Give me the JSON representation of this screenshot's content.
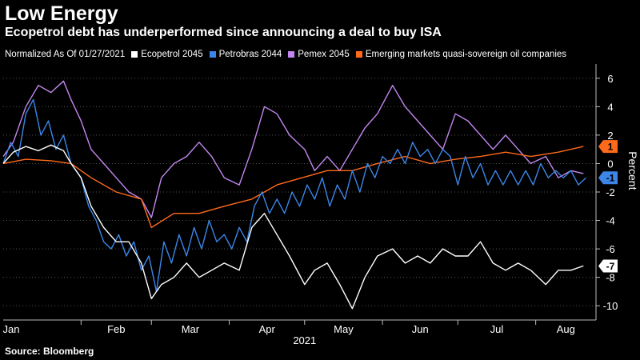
{
  "header": {
    "title": "Low Energy",
    "subtitle": "Ecopetrol debt has underperformed since announcing a deal to buy ISA"
  },
  "legend": {
    "note": "Normalized As Of 01/27/2021",
    "items": [
      {
        "label": "Ecopetrol 2045",
        "color": "#ffffff"
      },
      {
        "label": "Petrobras 2044",
        "color": "#3b86e8"
      },
      {
        "label": "Pemex 2045",
        "color": "#c487f0"
      },
      {
        "label": "Emerging markets quasi-sovereign oil companies",
        "color": "#ff6a1a"
      }
    ]
  },
  "footer": {
    "source": "Source: Bloomberg"
  },
  "chart_data": {
    "type": "line",
    "xlabel": "2021",
    "ylabel": "Percent",
    "y_axis_side": "right",
    "ylim": [
      -11,
      7
    ],
    "y_ticks": [
      6,
      4,
      2,
      0,
      -2,
      -4,
      -6,
      -8,
      -10
    ],
    "x_range": [
      "2021-01-01",
      "2021-08-25"
    ],
    "x_ticks": [
      {
        "label": "Jan",
        "date": "2021-01-04"
      },
      {
        "label": "Feb",
        "date": "2021-02-01"
      },
      {
        "label": "Mar",
        "date": "2021-03-01"
      },
      {
        "label": "Apr",
        "date": "2021-04-01"
      },
      {
        "label": "May",
        "date": "2021-05-01"
      },
      {
        "label": "Jun",
        "date": "2021-06-01"
      },
      {
        "label": "Jul",
        "date": "2021-07-01"
      },
      {
        "label": "Aug",
        "date": "2021-08-01"
      }
    ],
    "grid": "horizontal dotted",
    "end_labels": [
      {
        "series": "Emerging markets quasi-sovereign oil companies",
        "text": "1",
        "value": 1.2,
        "bg": "#ff6a1a",
        "fg": "#000000"
      },
      {
        "series": "Petrobras 2044",
        "text": "-1",
        "value": -1.0,
        "bg": "#3b86e8",
        "fg": "#000000"
      },
      {
        "series": "Ecopetrol 2045",
        "text": "-7",
        "value": -7.2,
        "bg": "#ffffff",
        "fg": "#000000"
      }
    ],
    "series": [
      {
        "name": "Ecopetrol 2045",
        "color": "#ffffff",
        "points": [
          [
            "2021-01-01",
            0.0
          ],
          [
            "2021-01-05",
            0.8
          ],
          [
            "2021-01-10",
            1.2
          ],
          [
            "2021-01-15",
            0.9
          ],
          [
            "2021-01-20",
            1.3
          ],
          [
            "2021-01-25",
            0.9
          ],
          [
            "2021-01-28",
            0.0
          ],
          [
            "2021-02-01",
            -1.0
          ],
          [
            "2021-02-05",
            -3.0
          ],
          [
            "2021-02-10",
            -4.5
          ],
          [
            "2021-02-15",
            -5.5
          ],
          [
            "2021-02-20",
            -5.5
          ],
          [
            "2021-02-25",
            -7.0
          ],
          [
            "2021-03-01",
            -9.5
          ],
          [
            "2021-03-05",
            -8.5
          ],
          [
            "2021-03-10",
            -8.0
          ],
          [
            "2021-03-15",
            -7.0
          ],
          [
            "2021-03-20",
            -8.0
          ],
          [
            "2021-03-25",
            -7.5
          ],
          [
            "2021-03-30",
            -7.0
          ],
          [
            "2021-04-05",
            -7.5
          ],
          [
            "2021-04-10",
            -4.5
          ],
          [
            "2021-04-15",
            -3.5
          ],
          [
            "2021-04-20",
            -5.0
          ],
          [
            "2021-04-25",
            -6.5
          ],
          [
            "2021-05-01",
            -8.5
          ],
          [
            "2021-05-05",
            -7.5
          ],
          [
            "2021-05-10",
            -7.0
          ],
          [
            "2021-05-15",
            -8.5
          ],
          [
            "2021-05-20",
            -10.2
          ],
          [
            "2021-05-25",
            -8.0
          ],
          [
            "2021-05-30",
            -6.5
          ],
          [
            "2021-06-05",
            -6.0
          ],
          [
            "2021-06-10",
            -7.0
          ],
          [
            "2021-06-15",
            -6.5
          ],
          [
            "2021-06-20",
            -7.0
          ],
          [
            "2021-06-25",
            -6.0
          ],
          [
            "2021-06-30",
            -6.5
          ],
          [
            "2021-07-05",
            -6.5
          ],
          [
            "2021-07-10",
            -5.5
          ],
          [
            "2021-07-15",
            -7.0
          ],
          [
            "2021-07-20",
            -7.5
          ],
          [
            "2021-07-25",
            -7.0
          ],
          [
            "2021-07-30",
            -7.5
          ],
          [
            "2021-08-05",
            -8.5
          ],
          [
            "2021-08-10",
            -7.5
          ],
          [
            "2021-08-15",
            -7.5
          ],
          [
            "2021-08-20",
            -7.2
          ]
        ]
      },
      {
        "name": "Petrobras 2044",
        "color": "#3b86e8",
        "points": [
          [
            "2021-01-01",
            0.0
          ],
          [
            "2021-01-04",
            1.5
          ],
          [
            "2021-01-07",
            0.5
          ],
          [
            "2021-01-10",
            3.5
          ],
          [
            "2021-01-13",
            4.5
          ],
          [
            "2021-01-16",
            2.0
          ],
          [
            "2021-01-19",
            3.0
          ],
          [
            "2021-01-22",
            1.0
          ],
          [
            "2021-01-25",
            2.0
          ],
          [
            "2021-01-28",
            0.0
          ],
          [
            "2021-02-01",
            -1.0
          ],
          [
            "2021-02-04",
            -3.0
          ],
          [
            "2021-02-07",
            -4.0
          ],
          [
            "2021-02-10",
            -5.5
          ],
          [
            "2021-02-13",
            -6.0
          ],
          [
            "2021-02-16",
            -5.0
          ],
          [
            "2021-02-19",
            -6.5
          ],
          [
            "2021-02-22",
            -5.5
          ],
          [
            "2021-02-25",
            -7.5
          ],
          [
            "2021-02-28",
            -6.5
          ],
          [
            "2021-03-03",
            -9.0
          ],
          [
            "2021-03-06",
            -5.5
          ],
          [
            "2021-03-09",
            -7.0
          ],
          [
            "2021-03-12",
            -5.0
          ],
          [
            "2021-03-15",
            -6.5
          ],
          [
            "2021-03-18",
            -4.5
          ],
          [
            "2021-03-21",
            -6.0
          ],
          [
            "2021-03-24",
            -4.0
          ],
          [
            "2021-03-27",
            -5.5
          ],
          [
            "2021-03-30",
            -5.0
          ],
          [
            "2021-04-02",
            -6.0
          ],
          [
            "2021-04-05",
            -4.5
          ],
          [
            "2021-04-08",
            -5.5
          ],
          [
            "2021-04-11",
            -3.0
          ],
          [
            "2021-04-14",
            -2.0
          ],
          [
            "2021-04-17",
            -3.5
          ],
          [
            "2021-04-20",
            -2.5
          ],
          [
            "2021-04-23",
            -3.5
          ],
          [
            "2021-04-26",
            -2.0
          ],
          [
            "2021-04-29",
            -3.0
          ],
          [
            "2021-05-02",
            -1.5
          ],
          [
            "2021-05-05",
            -2.5
          ],
          [
            "2021-05-08",
            -1.0
          ],
          [
            "2021-05-11",
            -3.0
          ],
          [
            "2021-05-14",
            -1.5
          ],
          [
            "2021-05-17",
            -2.5
          ],
          [
            "2021-05-20",
            -0.5
          ],
          [
            "2021-05-23",
            -2.0
          ],
          [
            "2021-05-26",
            0.0
          ],
          [
            "2021-05-29",
            -1.0
          ],
          [
            "2021-06-01",
            0.5
          ],
          [
            "2021-06-04",
            0.0
          ],
          [
            "2021-06-07",
            1.0
          ],
          [
            "2021-06-10",
            0.0
          ],
          [
            "2021-06-13",
            1.5
          ],
          [
            "2021-06-16",
            0.5
          ],
          [
            "2021-06-19",
            1.0
          ],
          [
            "2021-06-22",
            0.0
          ],
          [
            "2021-06-25",
            1.0
          ],
          [
            "2021-06-28",
            0.5
          ],
          [
            "2021-07-01",
            -1.5
          ],
          [
            "2021-07-04",
            0.5
          ],
          [
            "2021-07-07",
            -1.0
          ],
          [
            "2021-07-10",
            0.0
          ],
          [
            "2021-07-13",
            -1.5
          ],
          [
            "2021-07-16",
            -0.5
          ],
          [
            "2021-07-19",
            -1.5
          ],
          [
            "2021-07-22",
            -0.5
          ],
          [
            "2021-07-25",
            -1.5
          ],
          [
            "2021-07-28",
            -0.5
          ],
          [
            "2021-07-31",
            -1.5
          ],
          [
            "2021-08-03",
            0.0
          ],
          [
            "2021-08-06",
            -1.0
          ],
          [
            "2021-08-09",
            -0.5
          ],
          [
            "2021-08-12",
            -1.0
          ],
          [
            "2021-08-15",
            -0.5
          ],
          [
            "2021-08-18",
            -1.5
          ],
          [
            "2021-08-21",
            -1.0
          ]
        ]
      },
      {
        "name": "Pemex 2045",
        "color": "#c487f0",
        "points": [
          [
            "2021-01-01",
            0.5
          ],
          [
            "2021-01-05",
            1.5
          ],
          [
            "2021-01-10",
            4.0
          ],
          [
            "2021-01-15",
            5.5
          ],
          [
            "2021-01-20",
            5.0
          ],
          [
            "2021-01-25",
            5.8
          ],
          [
            "2021-01-28",
            4.5
          ],
          [
            "2021-02-01",
            3.0
          ],
          [
            "2021-02-05",
            1.0
          ],
          [
            "2021-02-10",
            0.0
          ],
          [
            "2021-02-15",
            -1.0
          ],
          [
            "2021-02-20",
            -2.0
          ],
          [
            "2021-02-25",
            -2.5
          ],
          [
            "2021-03-01",
            -3.8
          ],
          [
            "2021-03-05",
            -1.0
          ],
          [
            "2021-03-10",
            0.0
          ],
          [
            "2021-03-15",
            0.5
          ],
          [
            "2021-03-20",
            1.5
          ],
          [
            "2021-03-25",
            0.5
          ],
          [
            "2021-03-30",
            -1.0
          ],
          [
            "2021-04-05",
            -1.5
          ],
          [
            "2021-04-10",
            1.0
          ],
          [
            "2021-04-15",
            4.0
          ],
          [
            "2021-04-20",
            3.5
          ],
          [
            "2021-04-25",
            2.0
          ],
          [
            "2021-05-01",
            1.0
          ],
          [
            "2021-05-05",
            -0.5
          ],
          [
            "2021-05-10",
            0.5
          ],
          [
            "2021-05-15",
            -0.5
          ],
          [
            "2021-05-20",
            1.0
          ],
          [
            "2021-05-25",
            2.5
          ],
          [
            "2021-05-30",
            3.5
          ],
          [
            "2021-06-05",
            5.5
          ],
          [
            "2021-06-10",
            4.0
          ],
          [
            "2021-06-15",
            3.0
          ],
          [
            "2021-06-20",
            2.0
          ],
          [
            "2021-06-25",
            1.0
          ],
          [
            "2021-06-30",
            3.5
          ],
          [
            "2021-07-05",
            3.0
          ],
          [
            "2021-07-10",
            2.0
          ],
          [
            "2021-07-15",
            1.0
          ],
          [
            "2021-07-20",
            2.0
          ],
          [
            "2021-07-25",
            1.0
          ],
          [
            "2021-07-30",
            0.0
          ],
          [
            "2021-08-05",
            0.5
          ],
          [
            "2021-08-10",
            -1.0
          ],
          [
            "2021-08-15",
            -0.5
          ],
          [
            "2021-08-20",
            -0.7
          ]
        ]
      },
      {
        "name": "Emerging markets quasi-sovereign oil companies",
        "color": "#ff6a1a",
        "points": [
          [
            "2021-01-01",
            0.0
          ],
          [
            "2021-01-10",
            0.3
          ],
          [
            "2021-01-20",
            0.2
          ],
          [
            "2021-01-28",
            0.0
          ],
          [
            "2021-02-05",
            -1.0
          ],
          [
            "2021-02-15",
            -2.0
          ],
          [
            "2021-02-25",
            -2.5
          ],
          [
            "2021-03-01",
            -4.5
          ],
          [
            "2021-03-10",
            -3.5
          ],
          [
            "2021-03-20",
            -3.5
          ],
          [
            "2021-03-30",
            -3.0
          ],
          [
            "2021-04-10",
            -2.5
          ],
          [
            "2021-04-20",
            -1.5
          ],
          [
            "2021-04-30",
            -1.0
          ],
          [
            "2021-05-10",
            -0.5
          ],
          [
            "2021-05-20",
            -0.5
          ],
          [
            "2021-05-30",
            0.0
          ],
          [
            "2021-06-10",
            0.5
          ],
          [
            "2021-06-20",
            0.0
          ],
          [
            "2021-06-30",
            0.3
          ],
          [
            "2021-07-10",
            0.5
          ],
          [
            "2021-07-20",
            0.8
          ],
          [
            "2021-07-30",
            0.5
          ],
          [
            "2021-08-10",
            0.8
          ],
          [
            "2021-08-20",
            1.2
          ]
        ]
      }
    ]
  }
}
